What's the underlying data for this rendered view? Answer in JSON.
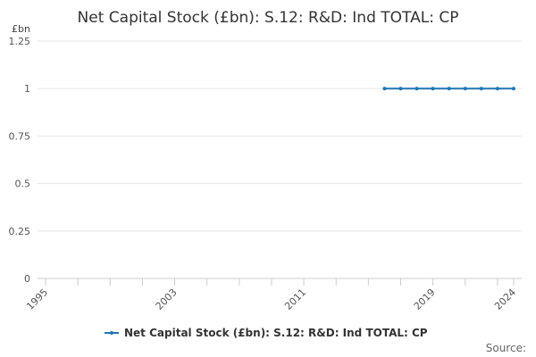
{
  "chart_data": {
    "type": "line",
    "title": "Net Capital Stock (£bn): S.12: R&D: Ind TOTAL: CP",
    "ylabel": "£bn",
    "xlabel": "",
    "ylim": [
      0,
      1.25
    ],
    "y_ticks": [
      "0",
      "0.25",
      "0.5",
      "0.75",
      "1",
      "1.25"
    ],
    "y_tick_values": [
      0,
      0.25,
      0.5,
      0.75,
      1,
      1.25
    ],
    "xlim": [
      1994.5,
      2024.5
    ],
    "x_tick_labels": [
      "1995",
      "2003",
      "2011",
      "2019",
      "2024"
    ],
    "x_tick_values": [
      1995,
      2003,
      2011,
      2019,
      2024
    ],
    "x_minor_ticks": [
      1997,
      1999,
      2001,
      2005,
      2007,
      2009,
      2013,
      2015,
      2017,
      2021,
      2023
    ],
    "grid": true,
    "legend_position": "bottom",
    "series": [
      {
        "name": "Net Capital Stock (£bn): S.12: R&D: Ind TOTAL: CP",
        "color": "#1f77b4",
        "x": [
          2016,
          2017,
          2018,
          2019,
          2020,
          2021,
          2022,
          2023,
          2024
        ],
        "values": [
          1,
          1,
          1,
          1,
          1,
          1,
          1,
          1,
          1
        ]
      }
    ],
    "credits": "Source:"
  }
}
